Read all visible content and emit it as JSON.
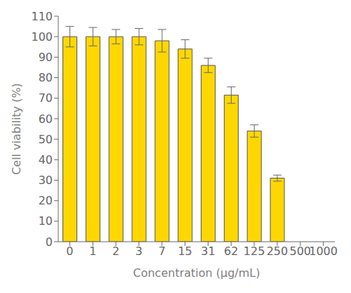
{
  "chart_data": {
    "type": "bar",
    "categories": [
      "0",
      "1",
      "2",
      "3",
      "7",
      "15",
      "31",
      "62",
      "125",
      "250",
      "500",
      "1000"
    ],
    "values": [
      100.0,
      100.0,
      100.0,
      100.0,
      98.0,
      94.0,
      86.0,
      71.5,
      54.0,
      31.0,
      null,
      null
    ],
    "errors": [
      5.0,
      4.5,
      3.5,
      4.0,
      5.5,
      4.5,
      3.5,
      4.0,
      3.0,
      1.5,
      null,
      null
    ],
    "color": "#FFD700",
    "xlabel": "Concentration (μg/mL)",
    "ylabel": "Cell viability (%)",
    "ylim": [
      0,
      110
    ],
    "yticks": [
      0,
      10,
      20,
      30,
      40,
      50,
      60,
      70,
      80,
      90,
      100,
      110
    ],
    "grid": false
  }
}
